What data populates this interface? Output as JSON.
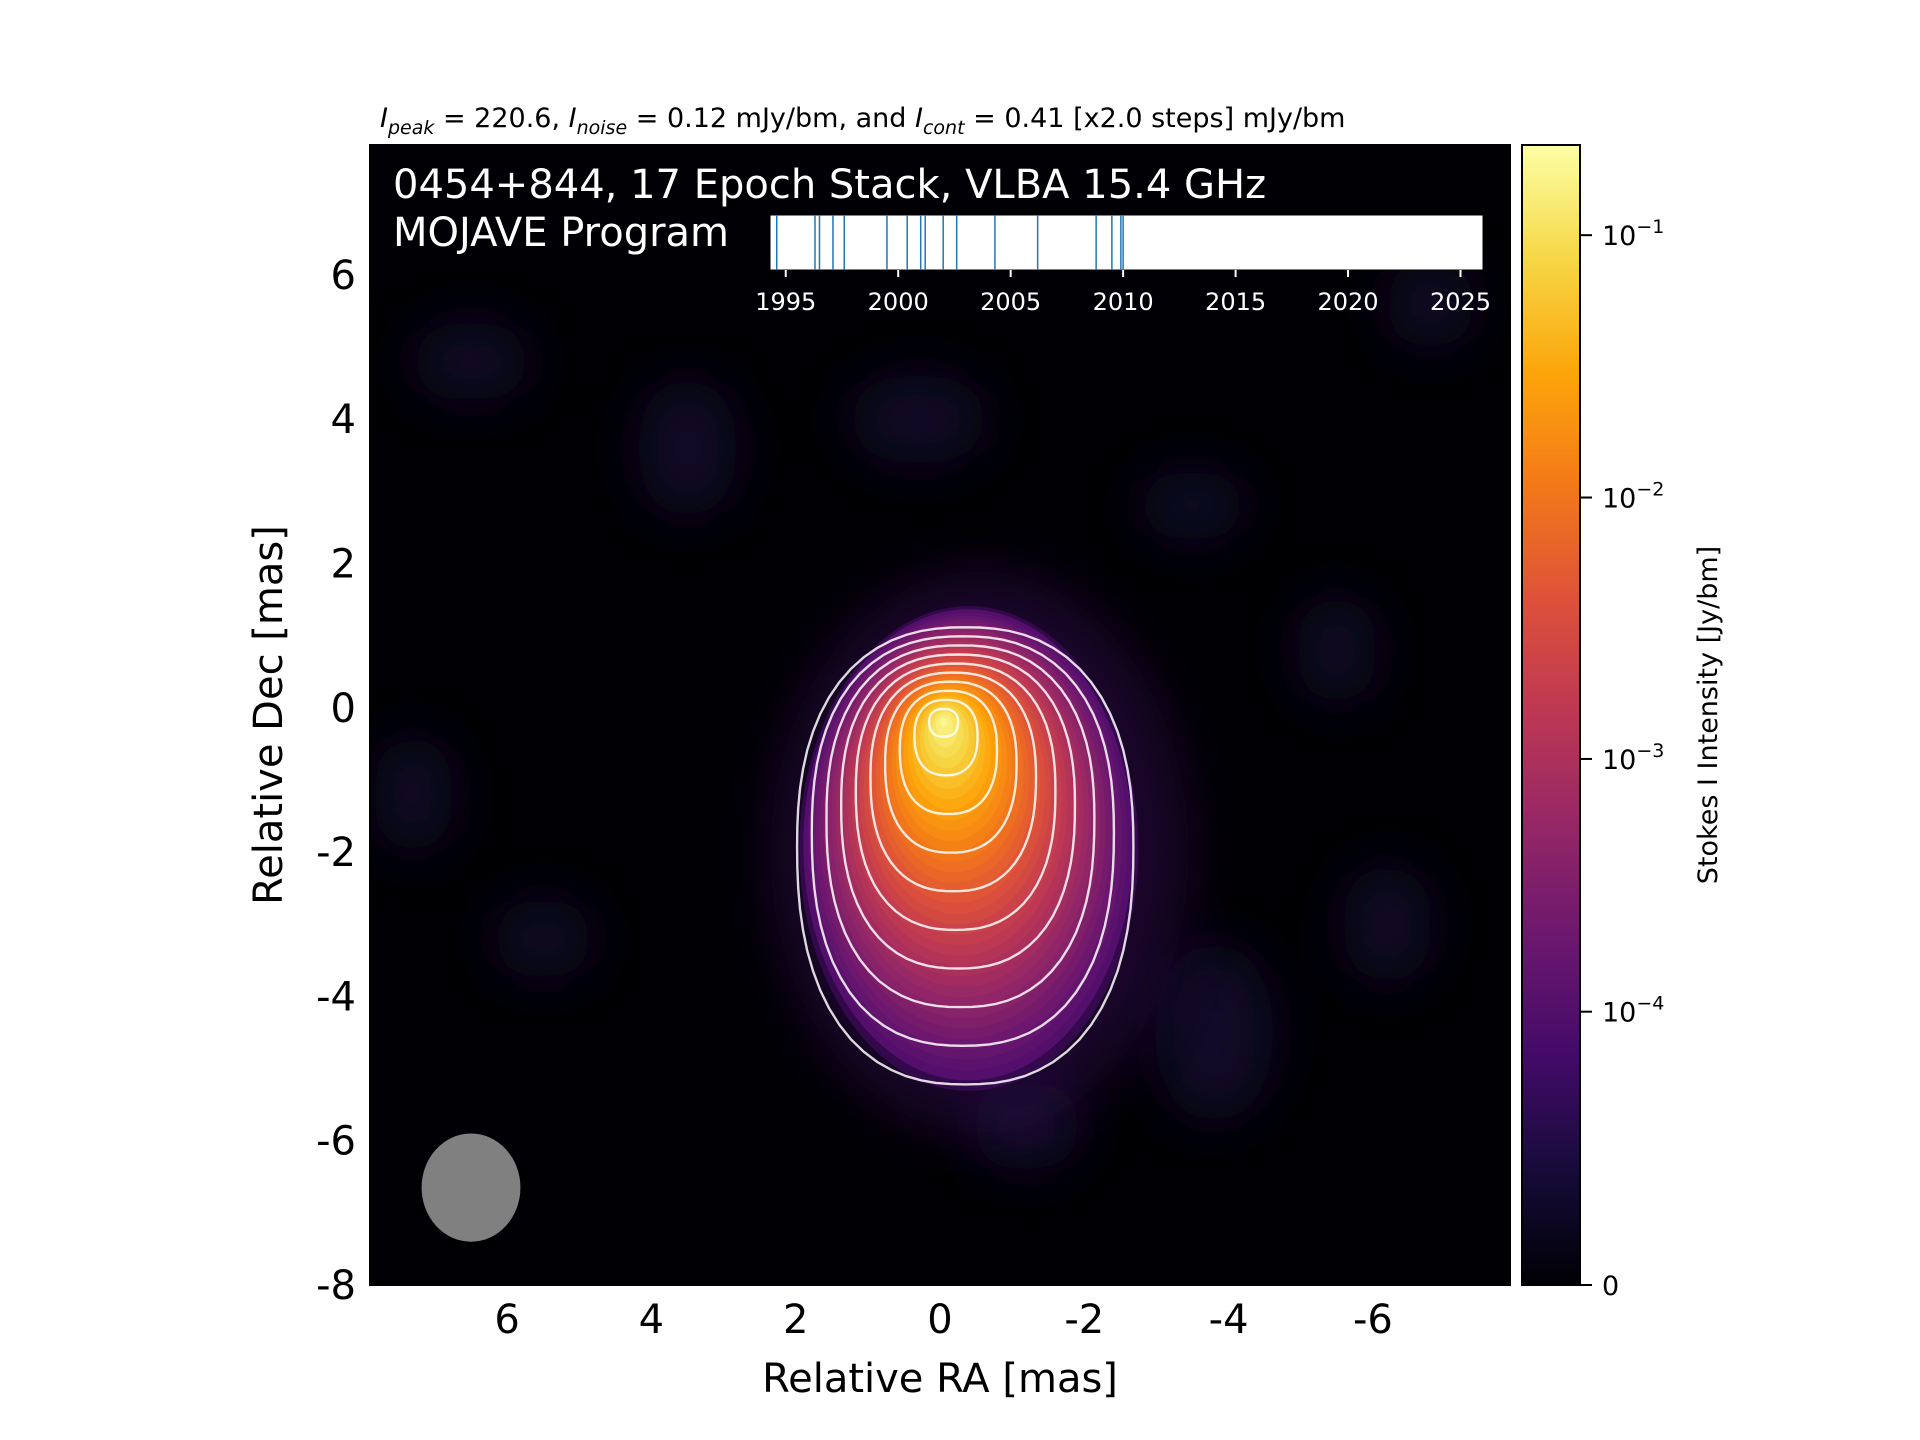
{
  "chart_data": {
    "type": "heatmap",
    "header": {
      "peak_value": "220.6",
      "noise_value": "0.12",
      "cont_value": "0.41",
      "cont_steps": "[x2.0 steps]",
      "unit": "mJy/bm",
      "and_word": "and"
    },
    "panel_title_line1": "0454+844, 17 Epoch Stack, VLBA 15.4 GHz",
    "panel_title_line2": "MOJAVE Program",
    "xlabel": "Relative RA [mas]",
    "ylabel": "Relative Dec [mas]",
    "xlim": [
      7.9,
      -7.9
    ],
    "ylim": [
      -8.0,
      7.8
    ],
    "x_ticks": [
      6,
      4,
      2,
      0,
      -2,
      -4,
      -6
    ],
    "x_tick_labels": [
      "6",
      "4",
      "2",
      "0",
      "-2",
      "-4",
      "-6"
    ],
    "y_ticks": [
      6,
      4,
      2,
      0,
      -2,
      -4,
      -6,
      -8
    ],
    "y_tick_labels": [
      "6",
      "4",
      "2",
      "0",
      "-2",
      "-4",
      "-6",
      "-8"
    ],
    "colorbar": {
      "label": "Stokes I Intensity [Jy/bm]",
      "scale": "symlog",
      "colormap": "inferno",
      "range": [
        0,
        0.2206
      ],
      "tick_values": [
        0.1,
        0.01,
        0.001,
        0.0001,
        0
      ],
      "tick_labels": [
        {
          "base": "10",
          "exp": "−1"
        },
        {
          "base": "10",
          "exp": "−2"
        },
        {
          "base": "10",
          "exp": "−3"
        },
        {
          "base": "10",
          "exp": "−4"
        },
        {
          "base": "0",
          "exp": ""
        }
      ]
    },
    "source": {
      "peak_jy": 0.2206,
      "ra_offset": -0.05,
      "dec_offset": -0.2
    },
    "contours": {
      "base_jy": 0.00041,
      "factor": 2.0,
      "count": 10,
      "color": "#ffffff"
    },
    "beam": {
      "ra_center": 6.5,
      "dec_center": -6.65,
      "major_mas": 1.5,
      "minor_mas": 1.37,
      "color": "#808080"
    },
    "epoch_timeline": {
      "range": [
        1994.3,
        2026.0
      ],
      "tick_labels": [
        "1995",
        "2000",
        "2005",
        "2010",
        "2015",
        "2020",
        "2025"
      ],
      "epochs": [
        1994.6,
        1996.3,
        1996.5,
        1997.1,
        1997.6,
        1999.5,
        2000.4,
        2001.0,
        2001.2,
        2002.0,
        2002.6,
        2004.3,
        2006.2,
        2008.8,
        2009.5,
        2009.9,
        2010.0
      ],
      "epoch_color": "#1f77b4"
    }
  }
}
